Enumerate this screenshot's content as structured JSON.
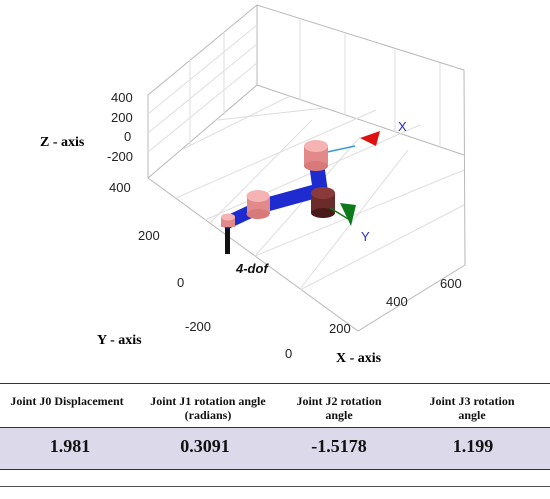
{
  "plot": {
    "z_axis_label": "Z - axis",
    "y_axis_label": "Y - axis",
    "x_axis_label": "X - axis",
    "z_ticks": [
      "400",
      "200",
      "0",
      "-200"
    ],
    "y_ticks": [
      "400",
      "200",
      "0",
      "-200"
    ],
    "x_ticks": [
      "0",
      "200",
      "400",
      "600"
    ],
    "robot_label": "4-dof",
    "frame_x_label": "X",
    "frame_y_label": "Y",
    "colors": {
      "link": "#1e2ccf",
      "joint": "#f0a0a0",
      "frame_x": "#e01010",
      "frame_y": "#0d7a1a",
      "frame_z": "#3a9ad8"
    }
  },
  "table": {
    "headers": [
      "Joint J0 Displacement",
      "Joint J1 rotation angle (radians)",
      "Joint J2 rotation angle",
      "Joint J3 rotation angle"
    ],
    "values": [
      "1.981",
      "0.3091",
      "-1.5178",
      "1.199"
    ],
    "row_color": "#dcd9ea"
  }
}
